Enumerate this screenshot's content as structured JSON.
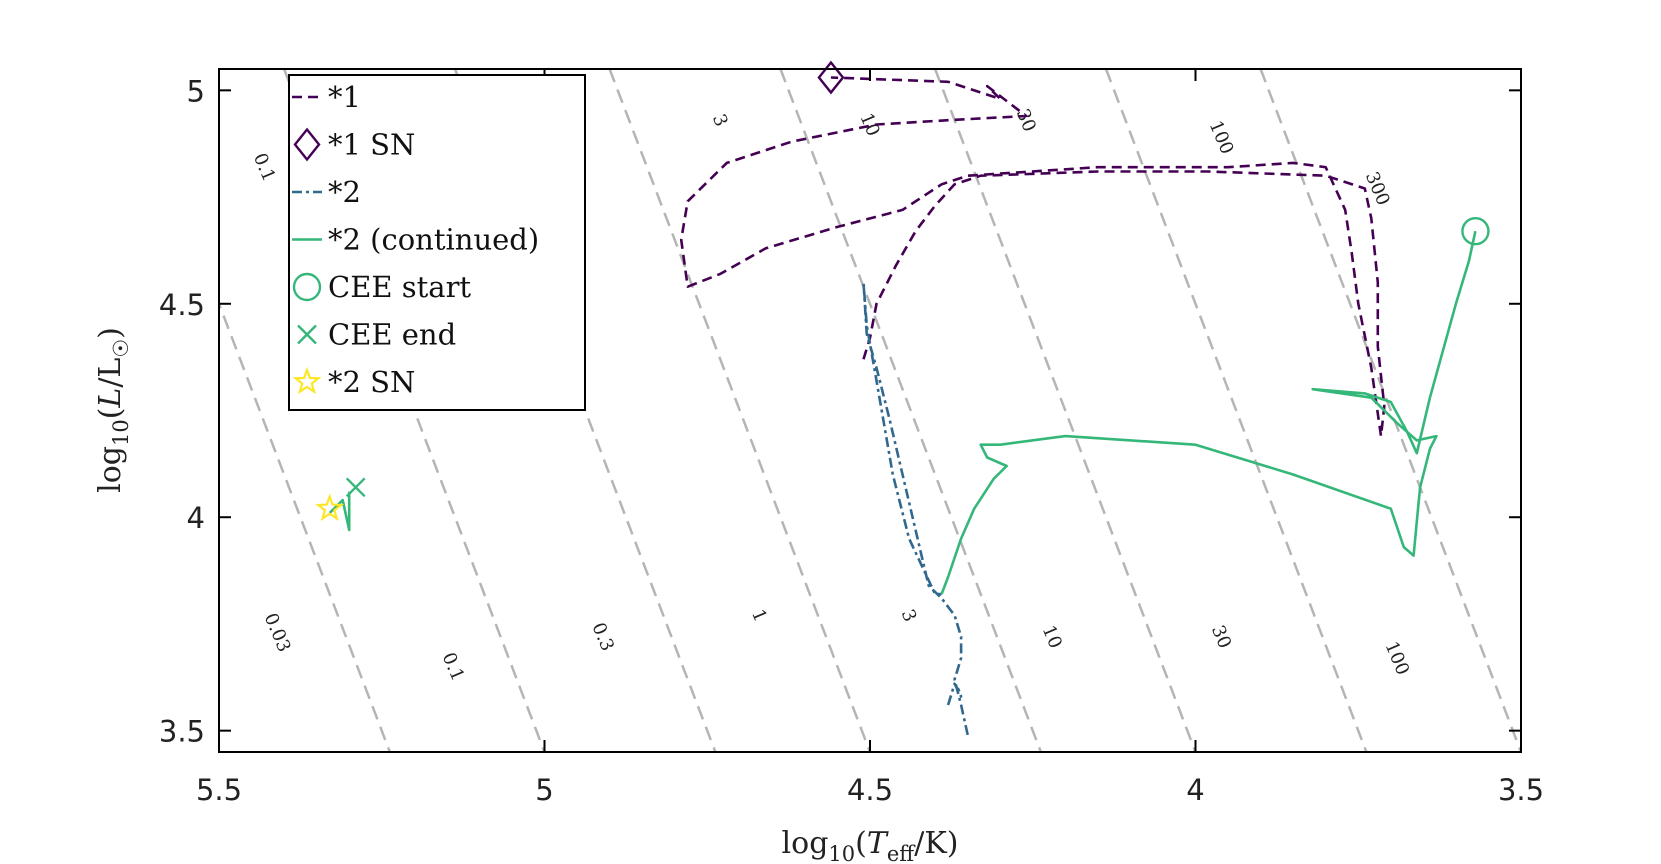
{
  "chart_data": {
    "type": "line",
    "title": "",
    "xlabel": "log10(Teff/K)",
    "ylabel": "log10(L/L☉)",
    "xlim": [
      5.5,
      3.5
    ],
    "ylim": [
      3.45,
      5.05
    ],
    "x_reversed": true,
    "xticks": [
      5.5,
      5,
      4.5,
      4,
      3.5
    ],
    "xtick_labels": [
      "5.5",
      "5",
      "4.5",
      "4",
      "3.5"
    ],
    "yticks": [
      3.5,
      4,
      4.5,
      5
    ],
    "ytick_labels": [
      "3.5",
      "4",
      "4.5",
      "5"
    ],
    "grid": false,
    "legend_position": "top-left",
    "legend": [
      {
        "label": "*1",
        "style": "dashed",
        "color": "#440154"
      },
      {
        "label": "*1 SN",
        "style": "diamond",
        "color": "#440154"
      },
      {
        "label": "*2",
        "style": "dashdot",
        "color": "#31688e"
      },
      {
        "label": "*2 (continued)",
        "style": "solid",
        "color": "#35b779"
      },
      {
        "label": "CEE start",
        "style": "circle",
        "color": "#35b779"
      },
      {
        "label": "CEE end",
        "style": "x",
        "color": "#35b779"
      },
      {
        "label": "*2 SN",
        "style": "star",
        "color": "#fde725"
      }
    ],
    "series": [
      {
        "name": "*1",
        "color": "#440154",
        "dash": "dashed",
        "x": [
          4.51,
          4.5,
          4.49,
          4.46,
          4.43,
          4.4,
          4.37,
          4.33,
          4.15,
          3.98,
          3.8,
          3.74,
          3.73,
          3.72,
          3.72,
          3.71,
          3.715,
          3.73,
          3.75,
          3.76,
          3.77,
          3.8,
          3.85,
          3.95,
          4.15,
          4.35,
          4.39,
          4.41,
          4.45,
          4.55,
          4.66,
          4.73,
          4.78,
          4.79,
          4.78,
          4.72,
          4.62,
          4.49,
          4.38,
          4.26,
          4.32,
          4.3,
          4.38,
          4.56
        ],
        "y": [
          4.37,
          4.42,
          4.5,
          4.59,
          4.67,
          4.73,
          4.78,
          4.8,
          4.81,
          4.81,
          4.8,
          4.77,
          4.7,
          4.55,
          4.4,
          4.26,
          4.19,
          4.35,
          4.5,
          4.62,
          4.72,
          4.82,
          4.83,
          4.82,
          4.82,
          4.8,
          4.78,
          4.76,
          4.72,
          4.68,
          4.63,
          4.57,
          4.54,
          4.65,
          4.74,
          4.83,
          4.88,
          4.92,
          4.93,
          4.94,
          5.01,
          4.98,
          5.02,
          5.03
        ]
      },
      {
        "name": "*2",
        "color": "#31688e",
        "dash": "dashdot",
        "x": [
          4.35,
          4.36,
          4.37,
          4.36,
          4.36,
          4.37,
          4.39,
          4.41,
          4.47,
          4.49,
          4.505,
          4.51,
          4.505,
          4.49,
          4.465,
          4.44,
          4.4,
          4.39
        ],
        "y": [
          3.49,
          3.56,
          3.62,
          3.67,
          3.72,
          3.77,
          3.81,
          3.84,
          4.23,
          4.35,
          4.43,
          4.55,
          4.45,
          4.32,
          4.1,
          3.95,
          3.82,
          3.82
        ],
        "x2": [
          4.38,
          4.37,
          4.36,
          4.365
        ],
        "y2": [
          3.56,
          3.61,
          3.58,
          3.6
        ]
      },
      {
        "name": "*2 (continued)",
        "color": "#35b779",
        "dash": "solid",
        "x": [
          4.39,
          4.38,
          4.36,
          4.34,
          4.31,
          4.29,
          4.32,
          4.33,
          4.3,
          4.2,
          4.0,
          3.85,
          3.7,
          3.68,
          3.665,
          3.66,
          3.655,
          3.64,
          3.63,
          3.66,
          3.69,
          3.73,
          3.82,
          3.74,
          3.7,
          3.675,
          3.66,
          3.64,
          3.6,
          3.58,
          3.57
        ],
        "x_sub": [
          5.33,
          5.31,
          5.3,
          5.3
        ],
        "y_sub": [
          4.01,
          4.04,
          3.97,
          4.06
        ],
        "y": [
          3.82,
          3.86,
          3.95,
          4.02,
          4.09,
          4.12,
          4.14,
          4.17,
          4.17,
          4.19,
          4.17,
          4.1,
          4.02,
          3.93,
          3.91,
          3.99,
          4.07,
          4.16,
          4.19,
          4.18,
          4.22,
          4.28,
          4.3,
          4.29,
          4.27,
          4.2,
          4.15,
          4.28,
          4.5,
          4.6,
          4.67
        ]
      }
    ],
    "markers": [
      {
        "name": "*1 SN",
        "shape": "diamond",
        "x": 4.56,
        "y": 5.03,
        "color": "#440154"
      },
      {
        "name": "CEE start",
        "shape": "circle",
        "x": 3.57,
        "y": 4.67,
        "color": "#35b779"
      },
      {
        "name": "CEE end",
        "shape": "x",
        "x": 5.29,
        "y": 4.07,
        "color": "#35b779"
      },
      {
        "name": "*2 SN",
        "shape": "star",
        "x": 5.33,
        "y": 4.02,
        "color": "#fde725"
      }
    ],
    "isoradius_lines": {
      "color": "#b5b5b5",
      "slope_y_per_x": 4,
      "radii": [
        0.03,
        0.1,
        0.3,
        1,
        3,
        10,
        30,
        100,
        300
      ],
      "intercepts": [
        -18.55,
        -17.5,
        -16.55,
        -15.5,
        -14.55,
        -13.5,
        -12.55,
        -11.5,
        -10.55
      ],
      "upper_labels": [
        {
          "text": "0.1",
          "x": 5.43,
          "y": 4.82
        },
        {
          "text": "3",
          "x": 4.73,
          "y": 4.93
        },
        {
          "text": "10",
          "x": 4.5,
          "y": 4.92
        },
        {
          "text": "30",
          "x": 4.26,
          "y": 4.93
        },
        {
          "text": "100",
          "x": 3.96,
          "y": 4.89
        },
        {
          "text": "300",
          "x": 3.72,
          "y": 4.77
        }
      ],
      "lower_labels": [
        {
          "text": "0.03",
          "x": 5.41,
          "y": 3.73
        },
        {
          "text": "0.1",
          "x": 5.14,
          "y": 3.65
        },
        {
          "text": "0.3",
          "x": 4.91,
          "y": 3.72
        },
        {
          "text": "1",
          "x": 4.67,
          "y": 3.77
        },
        {
          "text": "3",
          "x": 4.44,
          "y": 3.77
        },
        {
          "text": "10",
          "x": 4.22,
          "y": 3.72
        },
        {
          "text": "30",
          "x": 3.96,
          "y": 3.72
        },
        {
          "text": "100",
          "x": 3.69,
          "y": 3.67
        }
      ]
    }
  }
}
